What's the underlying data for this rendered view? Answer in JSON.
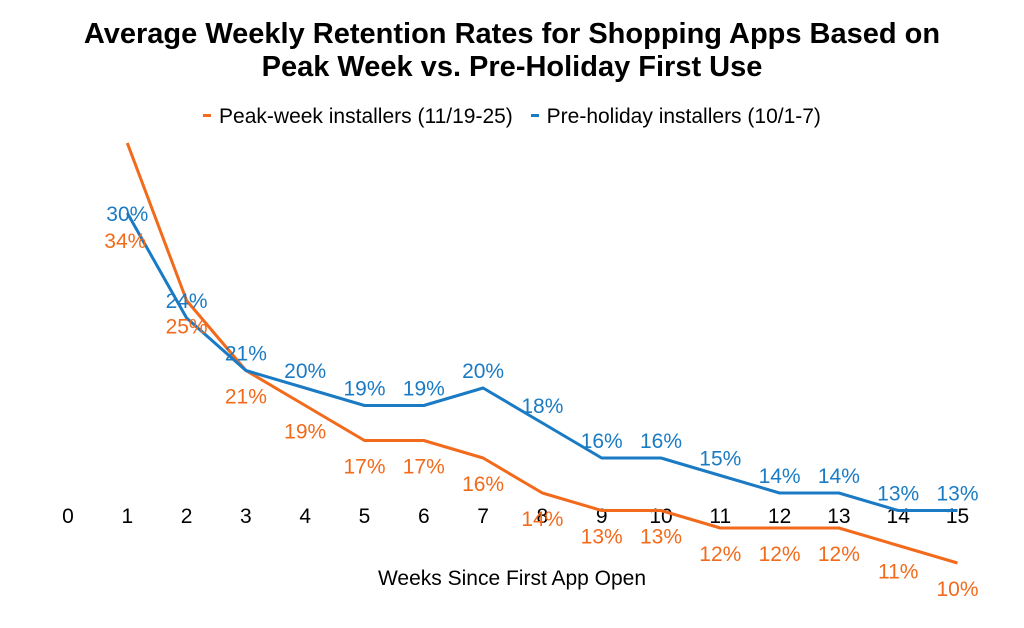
{
  "chart_data": {
    "type": "line",
    "title_line1": "Average Weekly Retention Rates for Shopping Apps Based on",
    "title_line2": "Peak Week vs. Pre-Holiday First Use",
    "xlabel": "Weeks Since First App Open",
    "ylabel": "",
    "x_ticks": [
      "0",
      "1",
      "2",
      "3",
      "4",
      "5",
      "6",
      "7",
      "8",
      "9",
      "10",
      "11",
      "12",
      "13",
      "14",
      "15"
    ],
    "x": [
      1,
      2,
      3,
      4,
      5,
      6,
      7,
      8,
      9,
      10,
      11,
      12,
      13,
      14,
      15
    ],
    "grid": false,
    "legend_position": "top",
    "series": [
      {
        "name": "Peak-week installers (11/19-25)",
        "color": "#F26A1B",
        "values": [
          34,
          25,
          21,
          19,
          17,
          17,
          16,
          14,
          13,
          13,
          12,
          12,
          12,
          11,
          10
        ],
        "labels": [
          "34%",
          "25%",
          "21%",
          "19%",
          "17%",
          "17%",
          "16%",
          "14%",
          "13%",
          "13%",
          "12%",
          "12%",
          "12%",
          "11%",
          "10%"
        ]
      },
      {
        "name": "Pre-holiday installers (10/1-7)",
        "color": "#1A7BC4",
        "values": [
          30,
          24,
          21,
          20,
          19,
          19,
          20,
          18,
          16,
          16,
          15,
          14,
          14,
          13,
          13
        ],
        "labels": [
          "30%",
          "24%",
          "21%",
          "20%",
          "19%",
          "19%",
          "20%",
          "18%",
          "16%",
          "16%",
          "15%",
          "14%",
          "14%",
          "13%",
          "13%"
        ]
      }
    ]
  }
}
